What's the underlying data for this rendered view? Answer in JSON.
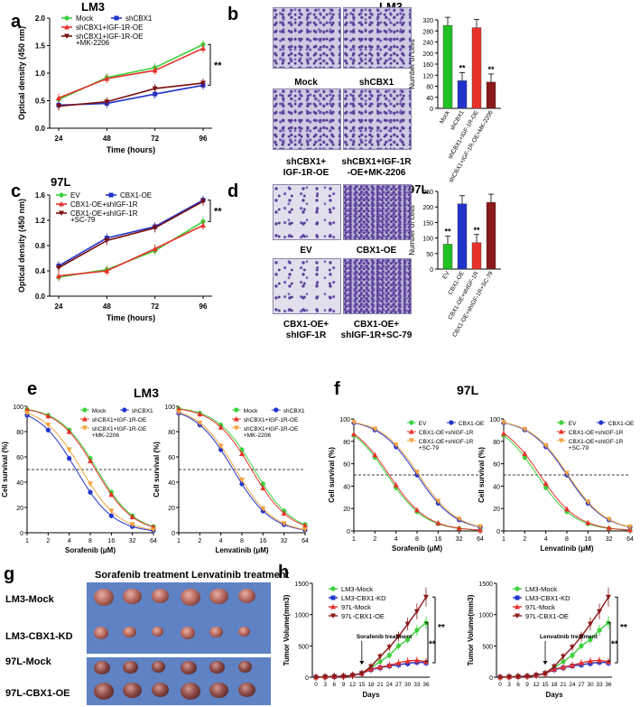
{
  "panels": {
    "a": "a",
    "b": "b",
    "c": "c",
    "d": "d",
    "e": "e",
    "f": "f",
    "g": "g",
    "h": "h"
  },
  "sig": "**",
  "panel_a": {
    "title": "LM3",
    "xlabel": "Time (hours)",
    "ylabel": "Optical density (450 nm)",
    "xticks": [
      "24",
      "48",
      "72",
      "96"
    ],
    "yticks": [
      "0.0",
      "0.5",
      "1.0",
      "1.5",
      "2.0"
    ],
    "ylim": [
      0,
      2
    ],
    "legend": [
      "Mock",
      "shCBX1",
      "shCBX1+IGF-1R-OE",
      "shCBX1+IGF-1R-OE",
      "+MK-2206"
    ],
    "series": [
      {
        "name": "Mock",
        "color": "#3dd13d",
        "values": [
          0.52,
          0.92,
          1.1,
          1.52
        ]
      },
      {
        "name": "shCBX1",
        "color": "#2233cc",
        "values": [
          0.42,
          0.45,
          0.62,
          0.78
        ]
      },
      {
        "name": "shCBX1+IGF-1R-OE",
        "color": "#e8312a",
        "values": [
          0.55,
          0.9,
          1.05,
          1.45
        ]
      },
      {
        "name": "shCBX1+IGF-1R-OE+MK-2206",
        "color": "#7a1010",
        "values": [
          0.4,
          0.48,
          0.72,
          0.82
        ]
      }
    ]
  },
  "panel_b": {
    "title": "LM3",
    "ylabel": "Number of cells",
    "yticks": [
      "0",
      "40",
      "80",
      "120",
      "160",
      "200",
      "240",
      "280",
      "320"
    ],
    "ylim": [
      0,
      320
    ],
    "image_labels": [
      "Mock",
      "shCBX1",
      "shCBX1+",
      "IGF-1R-OE",
      "shCBX1+IGF-1R",
      "-OE+MK-2206"
    ],
    "categories": [
      "Mock",
      "shCBX1",
      "shCBX1+IGF-1R-OE",
      "shCBX1+IGF-1R-OE+MK-2206"
    ],
    "values": [
      300,
      100,
      292,
      95
    ],
    "colors": [
      "#22c022",
      "#2233cc",
      "#e8312a",
      "#8b1a1a"
    ]
  },
  "panel_c": {
    "title": "97L",
    "xlabel": "Time (hours)",
    "ylabel": "Optical density (450 nm)",
    "xticks": [
      "24",
      "48",
      "72",
      "96"
    ],
    "yticks": [
      "0.0",
      "0.4",
      "0.8",
      "1.2",
      "1.6"
    ],
    "ylim": [
      0,
      1.6
    ],
    "legend": [
      "EV",
      "CBX1-OE",
      "CBX1-OE+shIGF-1R",
      "CBX1-OE+shIGF-1R",
      "+SC-79"
    ],
    "series": [
      {
        "name": "EV",
        "color": "#3dd13d",
        "values": [
          0.3,
          0.42,
          0.72,
          1.18
        ]
      },
      {
        "name": "CBX1-OE",
        "color": "#2233cc",
        "values": [
          0.48,
          0.92,
          1.1,
          1.52
        ]
      },
      {
        "name": "CBX1-OE+shIGF-1R",
        "color": "#e8312a",
        "values": [
          0.32,
          0.4,
          0.75,
          1.12
        ]
      },
      {
        "name": "CBX1-OE+shIGF-1R+SC-79",
        "color": "#7a1010",
        "values": [
          0.45,
          0.88,
          1.08,
          1.5
        ]
      }
    ]
  },
  "panel_d": {
    "title": "97L",
    "ylabel": "Number of cells",
    "yticks": [
      "0",
      "50",
      "100",
      "150",
      "200",
      "250"
    ],
    "ylim": [
      0,
      250
    ],
    "image_labels": [
      "EV",
      "CBX1-OE",
      "CBX1-OE+",
      "shIGF-1R",
      "CBX1-OE+",
      "shIGF-1R+SC-79"
    ],
    "categories": [
      "EV",
      "CBX1-OE",
      "CBX1-OE+shIGF-1R",
      "CBX1-OE+shIGF-1R+SC-79"
    ],
    "values": [
      80,
      210,
      85,
      215
    ],
    "colors": [
      "#22c022",
      "#2233cc",
      "#e8312a",
      "#8b1a1a"
    ]
  },
  "panel_e": {
    "title": "LM3",
    "ylabel": "Cell survival (%)",
    "yticks": [
      "0",
      "20",
      "40",
      "60",
      "80",
      "100"
    ],
    "xticks": [
      "1",
      "2",
      "4",
      "8",
      "16",
      "32",
      "64"
    ],
    "left": {
      "xlabel_prefix": "Sorafenib (",
      "xlabel_mu": "μ",
      "xlabel_suffix": "M)",
      "legend": [
        "Mock",
        "shCBX1",
        "shCBX1+IGF-1R-OE",
        "shCBX1+IGF-1R-OE",
        "+MK-2206"
      ],
      "ic50": [
        10,
        5,
        9.5,
        6
      ]
    },
    "right": {
      "xlabel_prefix": "Lenvatinib (",
      "xlabel_mu": "μ",
      "xlabel_suffix": "M)",
      "legend": [
        "Mock",
        "shCBX1",
        "shCBX1+IGF-1R-OE",
        "shCBX1+IGF-1R-OE",
        "+MK-2206"
      ],
      "ic50": [
        12,
        6,
        11,
        6.5
      ]
    }
  },
  "panel_f": {
    "title": "97L",
    "ylabel": "Cell survival (%)",
    "yticks": [
      "0",
      "20",
      "40",
      "60",
      "80",
      "100"
    ],
    "xticks": [
      "1",
      "2",
      "4",
      "8",
      "16",
      "32",
      "64"
    ],
    "left": {
      "xlabel_prefix": "Sorafenib (",
      "xlabel_mu": "μ",
      "xlabel_suffix": "M)",
      "legend": [
        "EV",
        "CBX1-OE",
        "CBX1-OE+shIGF-1R",
        "CBX1-OE+shIGF-1R",
        "+SC-79"
      ],
      "ic50": [
        3,
        8,
        3.2,
        8.5
      ]
    },
    "right": {
      "xlabel_prefix": "Lenvatinib (",
      "xlabel_mu": "μ",
      "xlabel_suffix": "M)",
      "legend": [
        "EV",
        "CBX1-OE",
        "CBX1-OE+shIGF-1R",
        "CBX1-OE+shIGF-1R",
        "+SC-79"
      ],
      "ic50": [
        3,
        8,
        3.3,
        8.3
      ]
    }
  },
  "dr_colors": [
    "#3dd13d",
    "#2233cc",
    "#e8312a",
    "#f2a23c"
  ],
  "panel_g": {
    "col_labels": [
      "Sorafenib treatment",
      "Lenvatinib treatment"
    ],
    "row_labels": [
      "LM3-Mock",
      "LM3-CBX1-KD",
      "97L-Mock",
      "97L-CBX1-OE"
    ]
  },
  "panel_h": {
    "ylabel": "Tumor Volume(mm",
    "ylabel_sup": "3",
    "ylabel_end": ")",
    "xlabel": "Days",
    "yticks": [
      "0",
      "500",
      "1000",
      "1500"
    ],
    "ylim": [
      0,
      1500
    ],
    "xticks": [
      "0",
      "3",
      "6",
      "9",
      "12",
      "15",
      "18",
      "21",
      "24",
      "27",
      "30",
      "33",
      "36"
    ],
    "legend": [
      "LM3-Mock",
      "LM3-CBX1-KD",
      "97L-Mock",
      "97L-CBX1-OE"
    ],
    "colors": [
      "#3dd13d",
      "#2233cc",
      "#e8312a",
      "#8b1a1a"
    ],
    "left": {
      "annotation": "Sorafenib treatment"
    },
    "right": {
      "annotation": "Lenvatinib treatment"
    },
    "series": [
      {
        "name": "LM3-Mock",
        "values": [
          0,
          5,
          10,
          15,
          30,
          60,
          150,
          250,
          350,
          500,
          600,
          750,
          870
        ]
      },
      {
        "name": "LM3-CBX1-KD",
        "values": [
          0,
          5,
          10,
          15,
          30,
          60,
          120,
          150,
          180,
          200,
          220,
          240,
          230
        ]
      },
      {
        "name": "97L-Mock",
        "values": [
          0,
          5,
          10,
          15,
          30,
          60,
          130,
          160,
          190,
          230,
          260,
          270,
          250
        ]
      },
      {
        "name": "97L-CBX1-OE",
        "values": [
          0,
          5,
          10,
          15,
          30,
          60,
          170,
          330,
          480,
          650,
          850,
          1050,
          1280
        ]
      }
    ]
  }
}
